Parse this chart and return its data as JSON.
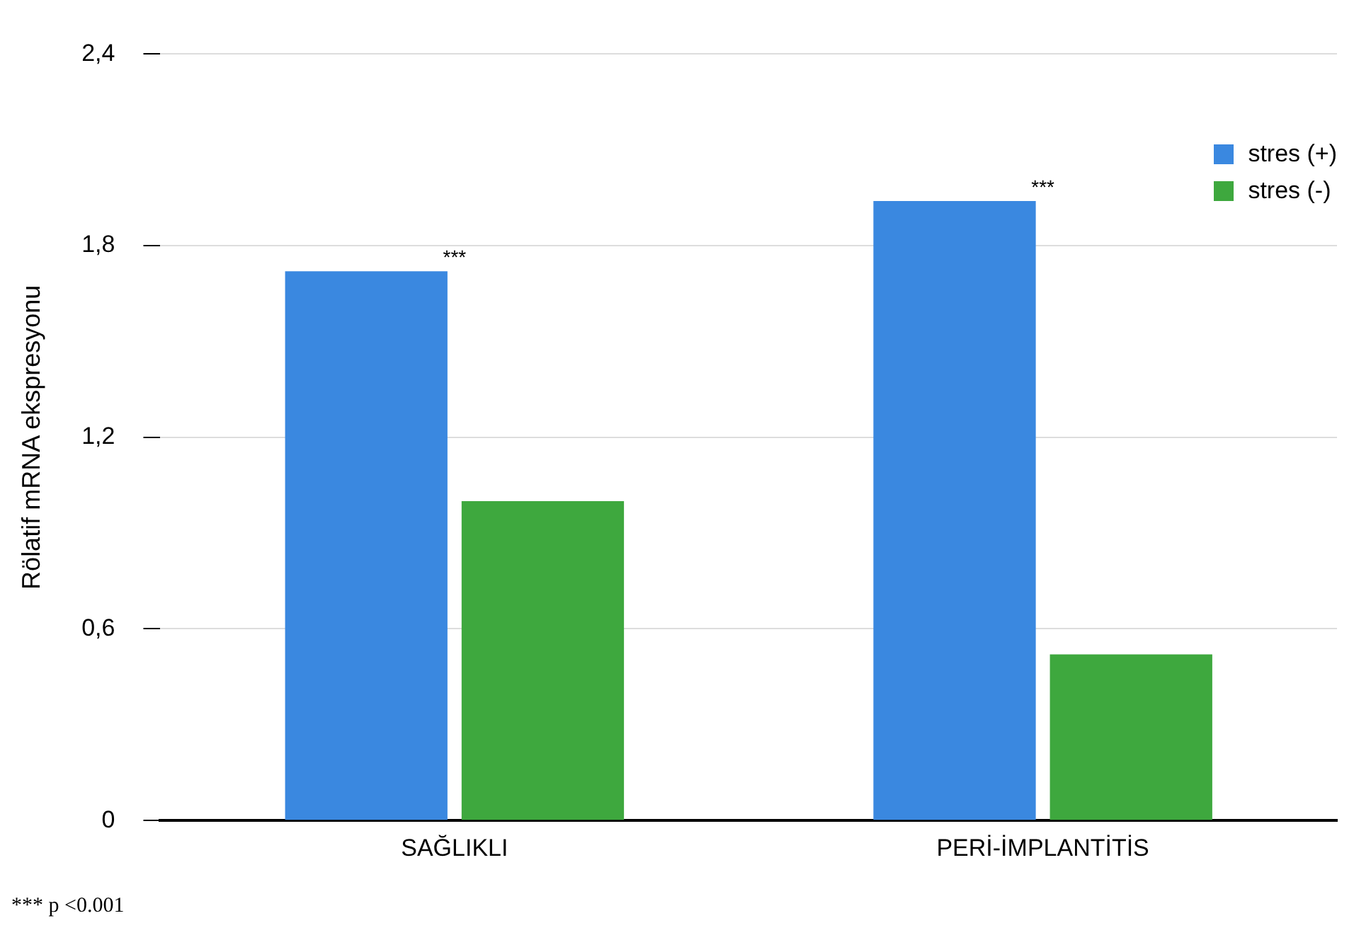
{
  "chart_data": {
    "type": "bar",
    "ylabel": "Rölatif mRNA ekspresyonu",
    "categories": [
      "SAĞLIKLI",
      "PERİ-İMPLANTİTİS"
    ],
    "series": [
      {
        "name": "stres (+)",
        "color": "#3a88e0",
        "values": [
          1.72,
          1.94
        ]
      },
      {
        "name": "stres (-)",
        "color": "#3ea83e",
        "values": [
          1.0,
          0.52
        ]
      }
    ],
    "ylim": [
      0,
      2.4
    ],
    "yticks": [
      0,
      {
        "value": 0.6,
        "label": "0,6"
      },
      {
        "value": 1.2,
        "label": "1,2"
      },
      {
        "value": 1.8,
        "label": "1,8"
      },
      {
        "value": 2.4,
        "label": "2,4"
      }
    ],
    "grid": "y",
    "legend": "top right",
    "annotations": [
      {
        "text": "***",
        "x": "SAĞLIKLI",
        "y": 1.72
      },
      {
        "text": "***",
        "x": "PERİ-İMPLANTİTİS",
        "y": 1.94
      },
      "*** p <0.001"
    ]
  }
}
